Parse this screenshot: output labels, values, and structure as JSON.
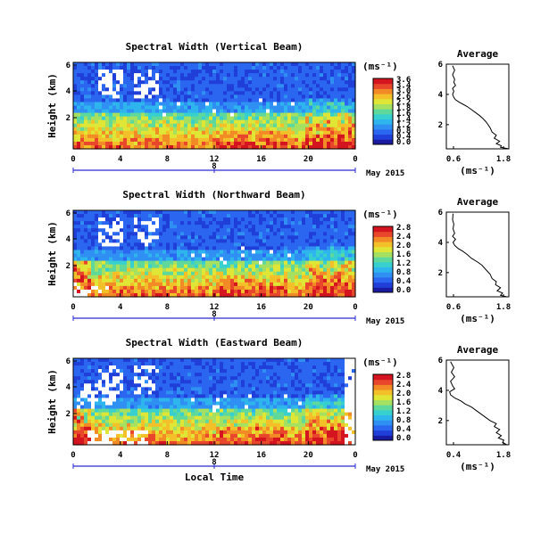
{
  "colormap": [
    "#1a1aa0",
    "#1f3fd8",
    "#2b66f0",
    "#2f8ff2",
    "#2fb5ee",
    "#38d0cf",
    "#5fd89c",
    "#a6e060",
    "#e0e636",
    "#f4c02a",
    "#f28a26",
    "#e8472b",
    "#d4141e"
  ],
  "chart_data": [
    {
      "type": "heatmap",
      "title": "Spectral Width (Vertical Beam)",
      "ylabel": "Height (km)",
      "xlabel": "",
      "x_ticks": [
        "0",
        "4",
        "8",
        "12",
        "16",
        "20",
        "0"
      ],
      "y_ticks": [
        "6",
        "4",
        "2"
      ],
      "day_ticks": [
        "",
        "8",
        ""
      ],
      "date_label": "May 2015",
      "colorbar": {
        "unit": "(ms⁻¹)",
        "ticks": [
          "3.6",
          "3.4",
          "3.0",
          "2.6",
          "2.2",
          "1.8",
          "1.6",
          "1.4",
          "1.2",
          "0.8",
          "0.4",
          "0.0"
        ],
        "range": [
          0.0,
          3.6
        ]
      },
      "profile": {
        "title": "Average",
        "xlabel": "(ms⁻¹)",
        "x_ticks": [
          "0.6",
          "1.8"
        ],
        "xlim": [
          0.4,
          1.9
        ],
        "y_ticks": [
          "6",
          "4",
          "2"
        ],
        "ylim": [
          0.4,
          6
        ],
        "points": [
          [
            1.9,
            0.4
          ],
          [
            1.7,
            0.5
          ],
          [
            1.72,
            0.6
          ],
          [
            1.6,
            0.75
          ],
          [
            1.68,
            0.9
          ],
          [
            1.55,
            1.1
          ],
          [
            1.6,
            1.3
          ],
          [
            1.5,
            1.5
          ],
          [
            1.45,
            1.8
          ],
          [
            1.4,
            2.0
          ],
          [
            1.35,
            2.2
          ],
          [
            1.28,
            2.4
          ],
          [
            1.2,
            2.6
          ],
          [
            1.1,
            2.8
          ],
          [
            1.0,
            3.0
          ],
          [
            0.9,
            3.2
          ],
          [
            0.8,
            3.35
          ],
          [
            0.7,
            3.5
          ],
          [
            0.62,
            3.65
          ],
          [
            0.58,
            3.8
          ],
          [
            0.55,
            4.0
          ],
          [
            0.58,
            4.2
          ],
          [
            0.55,
            4.4
          ],
          [
            0.62,
            4.6
          ],
          [
            0.58,
            4.8
          ],
          [
            0.6,
            5.0
          ],
          [
            0.55,
            5.3
          ],
          [
            0.6,
            5.6
          ],
          [
            0.55,
            5.9
          ]
        ]
      }
    },
    {
      "type": "heatmap",
      "title": "Spectral Width (Northward Beam)",
      "ylabel": "Height (km)",
      "xlabel": "",
      "x_ticks": [
        "0",
        "4",
        "8",
        "12",
        "16",
        "20",
        "0"
      ],
      "y_ticks": [
        "6",
        "4",
        "2"
      ],
      "day_ticks": [
        "",
        "8",
        ""
      ],
      "date_label": "May 2015",
      "colorbar": {
        "unit": "(ms⁻¹)",
        "ticks": [
          "2.8",
          "2.4",
          "2.0",
          "1.6",
          "1.2",
          "0.8",
          "0.4",
          "0.0"
        ],
        "range": [
          0.0,
          2.8
        ]
      },
      "profile": {
        "title": "Average",
        "xlabel": "(ms⁻¹)",
        "x_ticks": [
          "0.6",
          "1.8"
        ],
        "xlim": [
          0.4,
          1.9
        ],
        "y_ticks": [
          "6",
          "4",
          "2"
        ],
        "ylim": [
          0.4,
          6
        ],
        "points": [
          [
            1.85,
            0.4
          ],
          [
            1.7,
            0.5
          ],
          [
            1.75,
            0.65
          ],
          [
            1.62,
            0.8
          ],
          [
            1.7,
            1.0
          ],
          [
            1.58,
            1.2
          ],
          [
            1.6,
            1.4
          ],
          [
            1.5,
            1.6
          ],
          [
            1.45,
            1.9
          ],
          [
            1.35,
            2.2
          ],
          [
            1.25,
            2.5
          ],
          [
            1.15,
            2.7
          ],
          [
            1.0,
            2.95
          ],
          [
            0.9,
            3.2
          ],
          [
            0.8,
            3.4
          ],
          [
            0.68,
            3.6
          ],
          [
            0.6,
            3.8
          ],
          [
            0.56,
            4.0
          ],
          [
            0.62,
            4.2
          ],
          [
            0.55,
            4.4
          ],
          [
            0.6,
            4.6
          ],
          [
            0.56,
            4.9
          ],
          [
            0.58,
            5.2
          ],
          [
            0.55,
            5.5
          ],
          [
            0.56,
            5.9
          ]
        ]
      }
    },
    {
      "type": "heatmap",
      "title": "Spectral Width (Eastward Beam)",
      "ylabel": "Height (km)",
      "xlabel": "Local Time",
      "x_ticks": [
        "0",
        "4",
        "8",
        "12",
        "16",
        "20",
        "0"
      ],
      "y_ticks": [
        "6",
        "4",
        "2"
      ],
      "day_ticks": [
        "",
        "8",
        ""
      ],
      "date_label": "May 2015",
      "colorbar": {
        "unit": "(ms⁻¹)",
        "ticks": [
          "2.8",
          "2.4",
          "2.0",
          "1.6",
          "1.2",
          "0.8",
          "0.4",
          "0.0"
        ],
        "range": [
          0.0,
          2.8
        ]
      },
      "profile": {
        "title": "Average",
        "xlabel": "(ms⁻¹)",
        "x_ticks": [
          "0.4",
          "1.8"
        ],
        "xlim": [
          0.4,
          1.9
        ],
        "y_ticks": [
          "6",
          "4",
          "2"
        ],
        "ylim": [
          0.4,
          6
        ],
        "points": [
          [
            1.85,
            0.4
          ],
          [
            1.75,
            0.55
          ],
          [
            1.78,
            0.7
          ],
          [
            1.65,
            0.85
          ],
          [
            1.72,
            1.0
          ],
          [
            1.6,
            1.2
          ],
          [
            1.68,
            1.4
          ],
          [
            1.55,
            1.6
          ],
          [
            1.6,
            1.8
          ],
          [
            1.45,
            2.0
          ],
          [
            1.3,
            2.3
          ],
          [
            1.15,
            2.6
          ],
          [
            1.0,
            2.9
          ],
          [
            0.85,
            3.1
          ],
          [
            0.75,
            3.3
          ],
          [
            0.6,
            3.5
          ],
          [
            0.5,
            3.7
          ],
          [
            0.48,
            3.9
          ],
          [
            0.6,
            4.1
          ],
          [
            0.55,
            4.3
          ],
          [
            0.5,
            4.6
          ],
          [
            0.6,
            4.9
          ],
          [
            0.52,
            5.2
          ],
          [
            0.58,
            5.5
          ],
          [
            0.5,
            5.9
          ]
        ]
      }
    }
  ]
}
